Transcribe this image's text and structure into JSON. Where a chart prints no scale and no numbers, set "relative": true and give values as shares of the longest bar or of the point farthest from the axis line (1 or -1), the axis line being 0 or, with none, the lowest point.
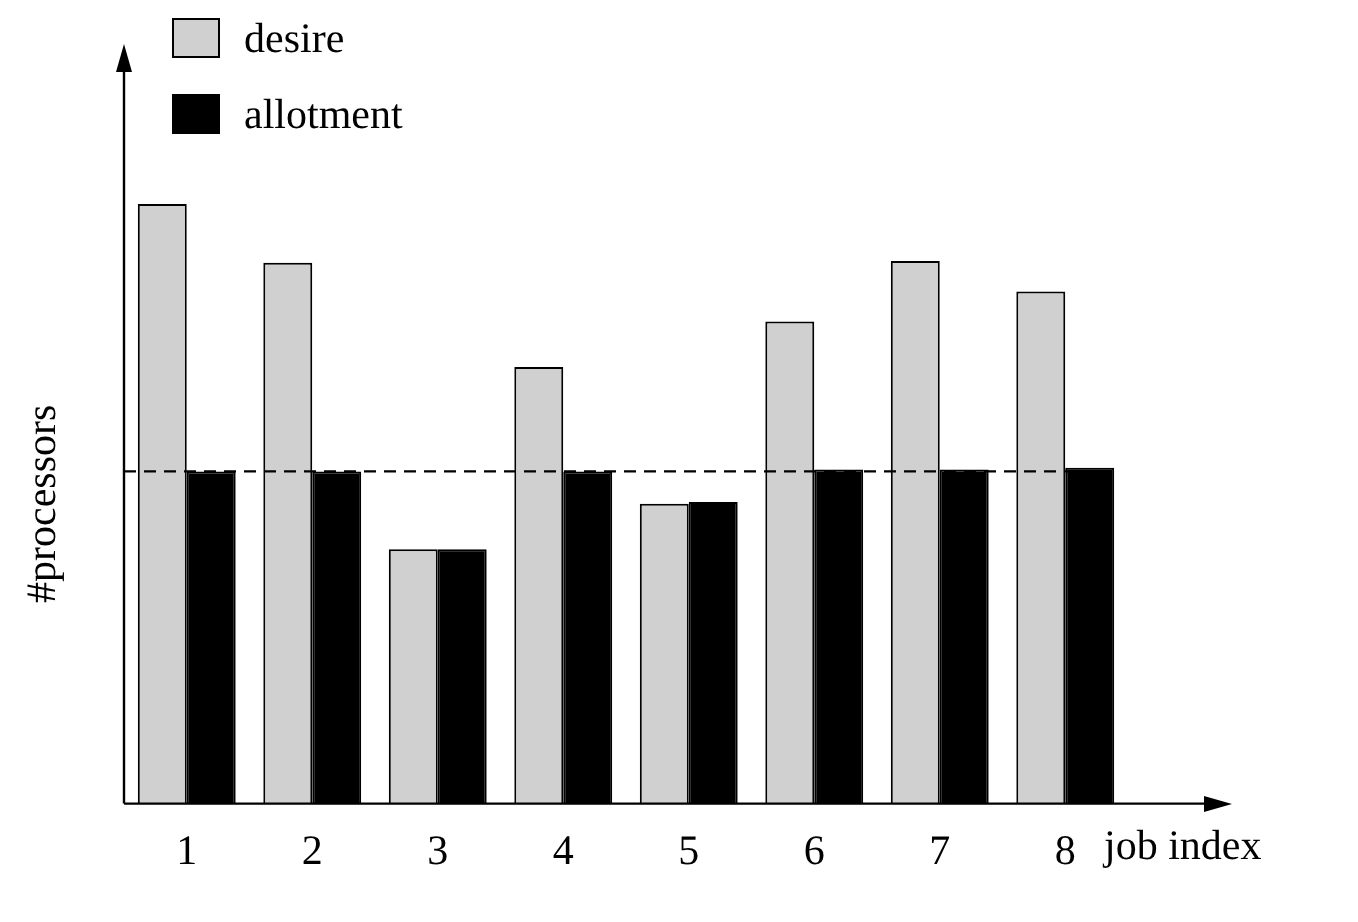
{
  "chart_data": {
    "type": "bar",
    "relative": true,
    "xlabel": "job index",
    "ylabel": "#processors",
    "categories": [
      "1",
      "2",
      "3",
      "4",
      "5",
      "6",
      "7",
      "8"
    ],
    "series": [
      {
        "name": "desire",
        "color": "#d0d0d0",
        "values": [
          1,
          0.902,
          0.424,
          0.728,
          0.5,
          0.804,
          0.905,
          0.854
        ]
      },
      {
        "name": "allotment",
        "color": "#000000",
        "values": [
          0.554,
          0.554,
          0.424,
          0.554,
          0.503,
          0.557,
          0.557,
          0.56
        ]
      }
    ],
    "ref_lines": [
      {
        "axis": "y",
        "value": 0.554,
        "color": "#000000",
        "line_style": "dashed"
      }
    ],
    "grid": false,
    "legend": "top left"
  }
}
